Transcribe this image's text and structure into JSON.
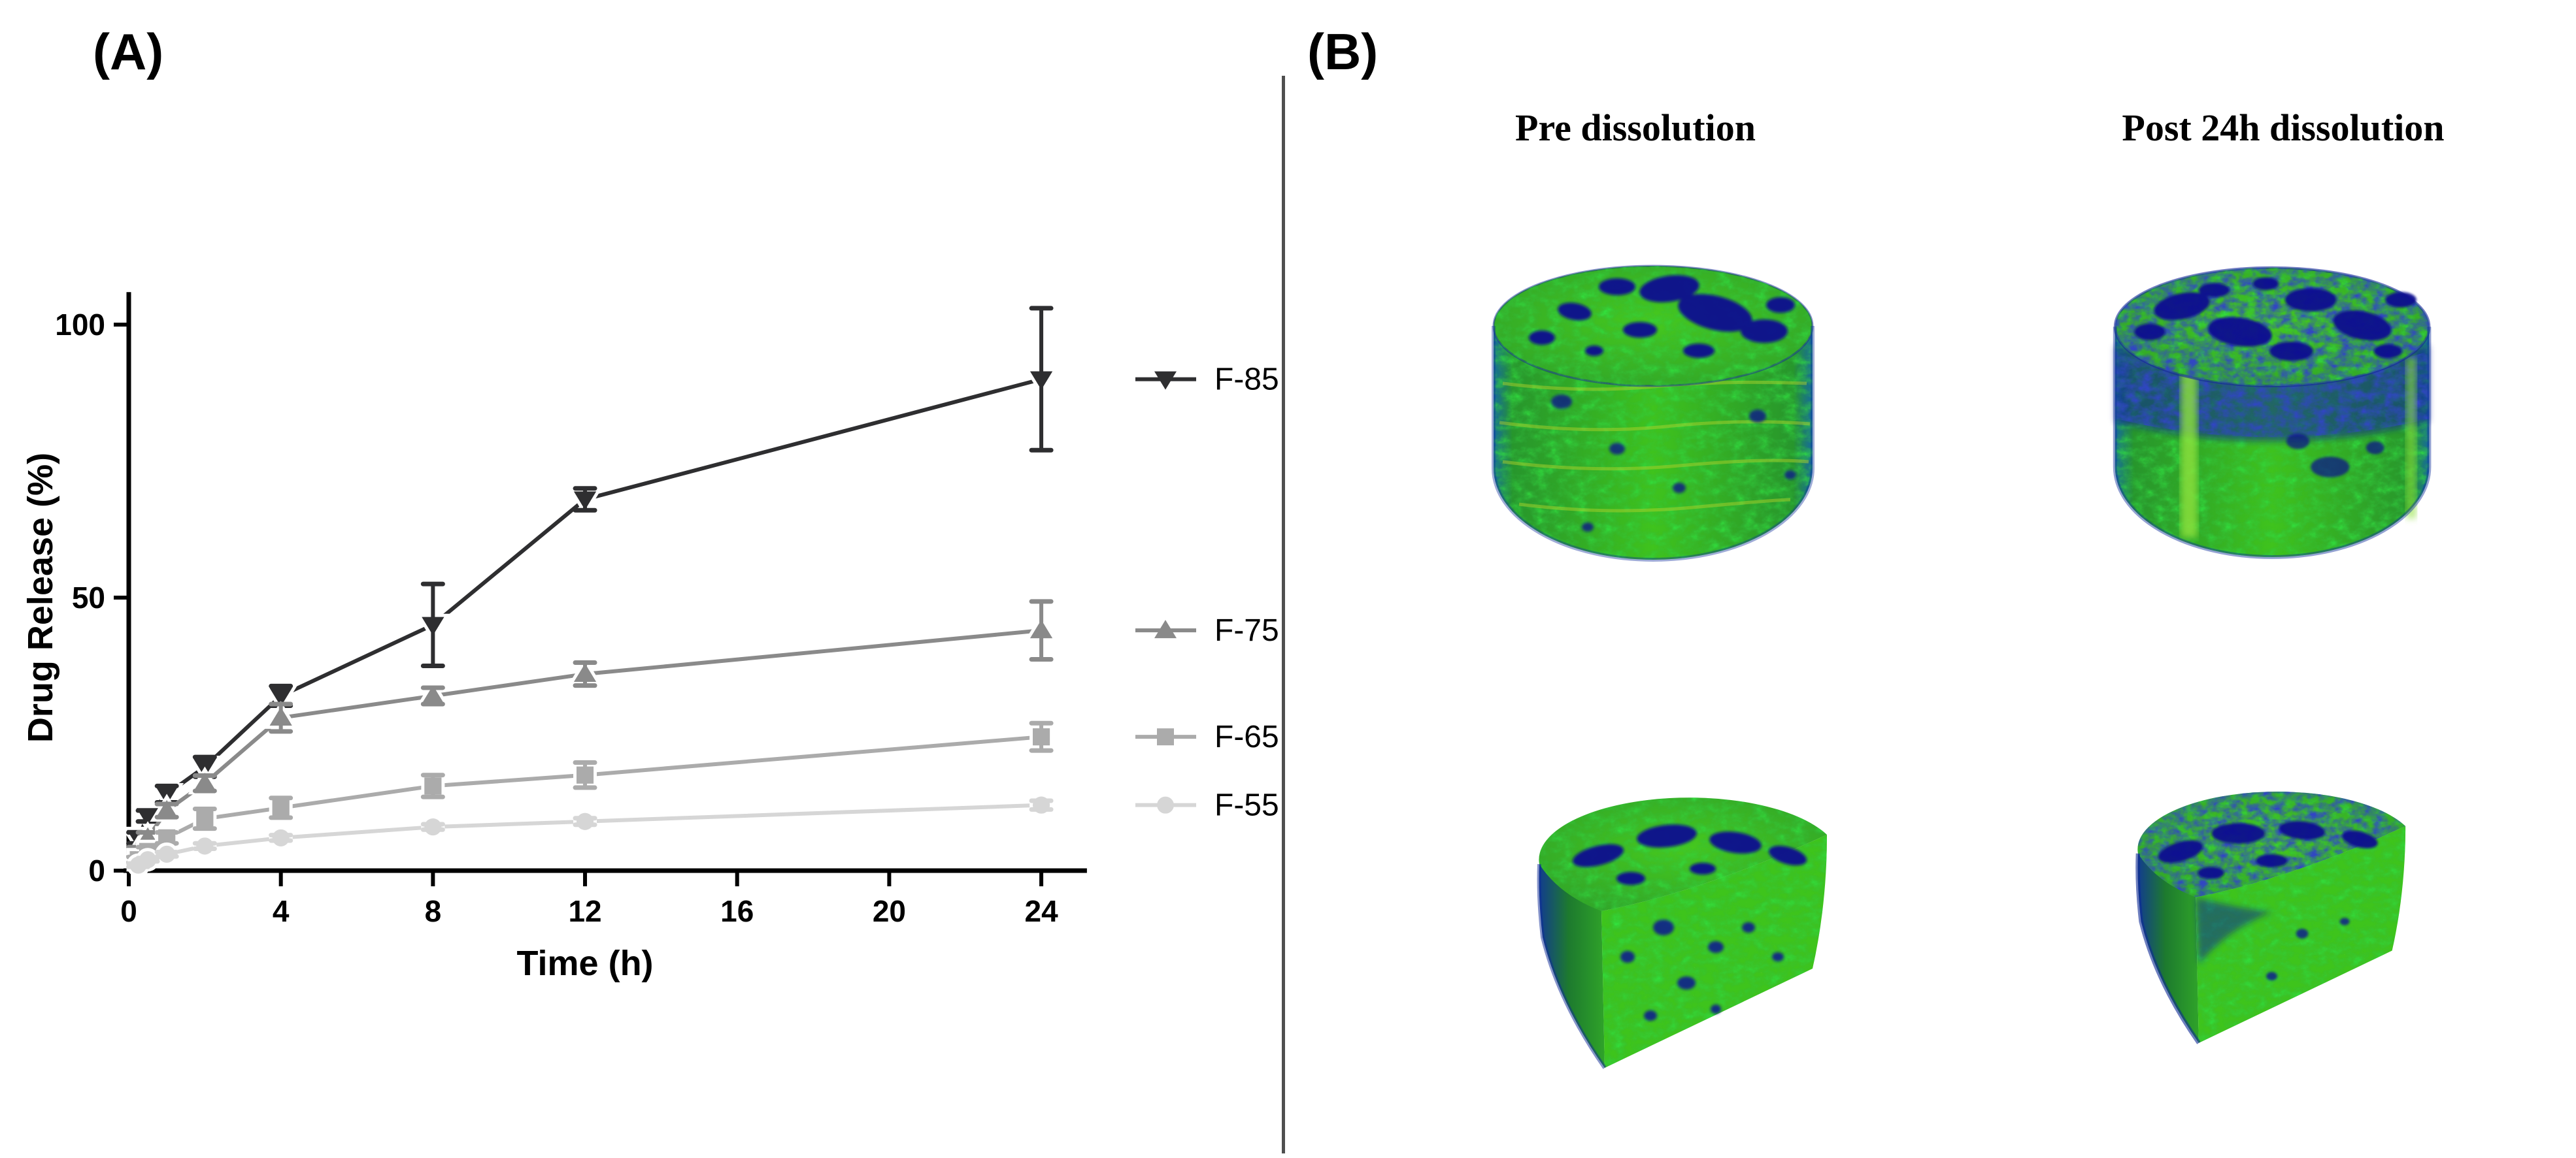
{
  "figure": {
    "panel_a_label": "(A)",
    "panel_b_label": "(B)"
  },
  "chart_data": {
    "type": "line",
    "title": "",
    "xlabel": "Time (h)",
    "ylabel": "Drug Release (%)",
    "xlim": [
      0,
      25.2
    ],
    "ylim": [
      0,
      105
    ],
    "xticks": [
      0,
      4,
      8,
      12,
      16,
      20,
      24
    ],
    "yticks": [
      0,
      50,
      100
    ],
    "grid": false,
    "legend_position": "right of plot, each entry vertically aligned with its series endpoint",
    "x": [
      0.25,
      0.5,
      1,
      2,
      4,
      8,
      12,
      24
    ],
    "series": [
      {
        "name": "F-85",
        "marker": "triangle-down",
        "color": "#2E2E30",
        "values": [
          6,
          10,
          14,
          19,
          32,
          45,
          68,
          90
        ],
        "errors": [
          1,
          1,
          1.5,
          1.8,
          1.8,
          7.5,
          2,
          13
        ]
      },
      {
        "name": "F-75",
        "marker": "triangle-up",
        "color": "#8A8A8A",
        "values": [
          3.5,
          6,
          11,
          16,
          28,
          32,
          36,
          44
        ],
        "errors": [
          0.8,
          1,
          1.2,
          1.4,
          2.5,
          1.5,
          2.1,
          5.3
        ]
      },
      {
        "name": "F-65",
        "marker": "square",
        "color": "#ABABAB",
        "values": [
          2,
          3.5,
          6,
          9.5,
          11.5,
          15.5,
          17.5,
          24.5
        ],
        "errors": [
          0.5,
          0.8,
          1,
          1.8,
          1.8,
          2,
          2.3,
          2.5
        ]
      },
      {
        "name": "F-55",
        "marker": "circle",
        "color": "#D6D6D6",
        "values": [
          1,
          2,
          3,
          4.5,
          6,
          8,
          9,
          12
        ],
        "errors": [
          0.3,
          0.3,
          0.4,
          0.5,
          0.5,
          0.5,
          0.6,
          0.8
        ]
      }
    ]
  },
  "panel_b": {
    "col_headers": [
      "Pre dissolution",
      "Post 24h dissolution"
    ],
    "divider_color": "#E4762F"
  }
}
